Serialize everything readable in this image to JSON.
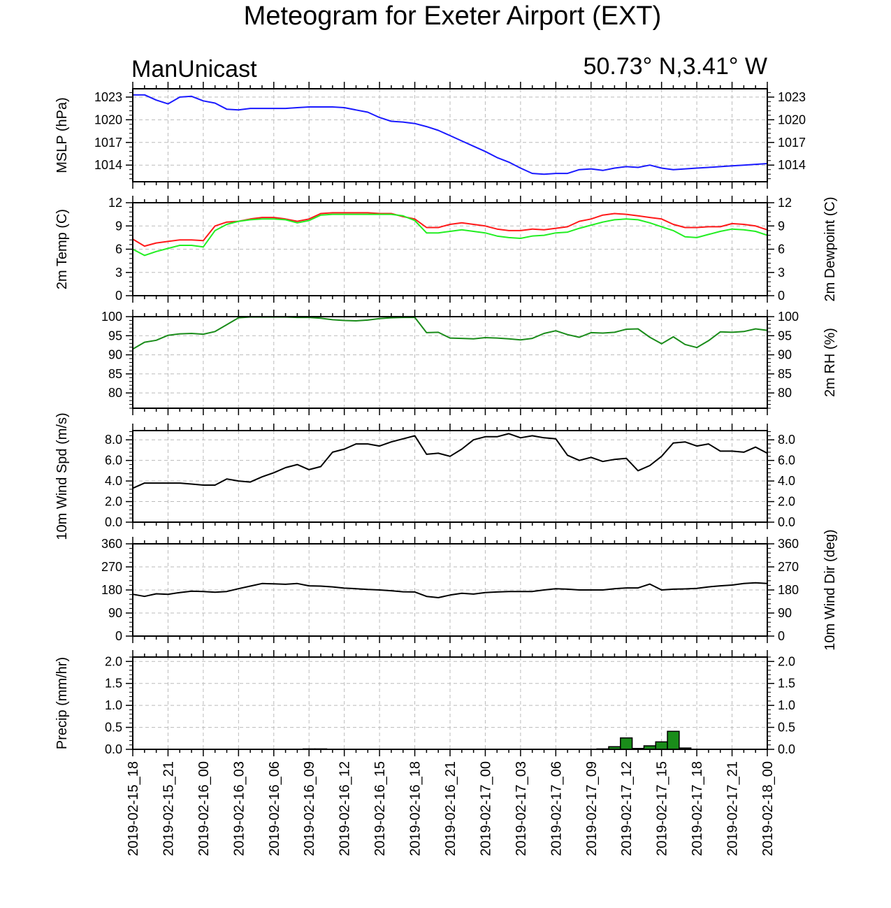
{
  "title": "Meteogram for Exeter Airport (EXT)",
  "left_label": "ManUnicast",
  "right_label": "50.73° N,3.41° W",
  "colors": {
    "mslp": "#1a1aff",
    "temp": "#ff1a1a",
    "dewpoint": "#22ee22",
    "rh": "#1a8c1a",
    "wind": "#000000",
    "precip_fill": "#1a8c1a",
    "grid": "#bbbbbb"
  },
  "chart_data": {
    "type": "line",
    "x_tick_labels": [
      "2019-02-15_18",
      "2019-02-15_21",
      "2019-02-16_00",
      "2019-02-16_03",
      "2019-02-16_06",
      "2019-02-16_09",
      "2019-02-16_12",
      "2019-02-16_15",
      "2019-02-16_18",
      "2019-02-16_21",
      "2019-02-17_00",
      "2019-02-17_03",
      "2019-02-17_06",
      "2019-02-17_09",
      "2019-02-17_12",
      "2019-02-17_15",
      "2019-02-17_18",
      "2019-02-17_21",
      "2019-02-18_00"
    ],
    "x_hours": [
      0,
      1,
      2,
      3,
      4,
      5,
      6,
      7,
      8,
      9,
      10,
      11,
      12,
      13,
      14,
      15,
      16,
      17,
      18,
      19,
      20,
      21,
      22,
      23,
      24,
      25,
      26,
      27,
      28,
      29,
      30,
      31,
      32,
      33,
      34,
      35,
      36,
      37,
      38,
      39,
      40,
      41,
      42,
      43,
      44,
      45,
      46,
      47,
      48,
      49,
      50,
      51,
      52,
      53,
      54
    ],
    "panels": [
      {
        "ylabel_left": "MSLP (hPa)",
        "ylabel_right": "",
        "ylim": [
          1011.8,
          1024.1
        ],
        "yticks": [
          1014,
          1017,
          1020,
          1023
        ],
        "ytick_labels": [
          "1014",
          "1017",
          "1020",
          "1023"
        ],
        "series": [
          {
            "color_key": "mslp",
            "values": [
              1023.3,
              1023.3,
              1022.6,
              1022.1,
              1023.0,
              1023.1,
              1022.5,
              1022.2,
              1021.4,
              1021.3,
              1021.5,
              1021.5,
              1021.5,
              1021.5,
              1021.6,
              1021.7,
              1021.7,
              1021.7,
              1021.6,
              1021.3,
              1021.0,
              1020.3,
              1019.8,
              1019.7,
              1019.5,
              1019.1,
              1018.6,
              1017.9,
              1017.2,
              1016.5,
              1015.8,
              1015.0,
              1014.4,
              1013.6,
              1012.9,
              1012.8,
              1012.9,
              1012.9,
              1013.4,
              1013.5,
              1013.3,
              1013.6,
              1013.8,
              1013.7,
              1014.0,
              1013.6,
              1013.4,
              1013.5,
              1013.6,
              1013.7,
              1013.8,
              1013.9,
              1014.0,
              1014.1,
              1014.2
            ]
          }
        ]
      },
      {
        "ylabel_left": "2m Temp (C)",
        "ylabel_right": "2m Dewpoint (C)",
        "ylim": [
          0,
          12
        ],
        "yticks": [
          0,
          3,
          6,
          9,
          12
        ],
        "ytick_labels": [
          "0",
          "3",
          "6",
          "9",
          "12"
        ],
        "series": [
          {
            "color_key": "temp",
            "values": [
              7.3,
              6.4,
              6.8,
              7.0,
              7.2,
              7.2,
              7.1,
              9.0,
              9.5,
              9.6,
              9.9,
              10.1,
              10.1,
              9.9,
              9.6,
              9.9,
              10.6,
              10.7,
              10.7,
              10.7,
              10.7,
              10.6,
              10.6,
              10.2,
              9.9,
              8.8,
              8.8,
              9.2,
              9.4,
              9.2,
              9.0,
              8.6,
              8.4,
              8.4,
              8.6,
              8.5,
              8.7,
              8.9,
              9.6,
              9.9,
              10.4,
              10.6,
              10.5,
              10.3,
              10.1,
              9.9,
              9.2,
              8.8,
              8.8,
              8.9,
              8.9,
              9.3,
              9.2,
              9.0,
              8.5
            ]
          },
          {
            "color_key": "dewpoint",
            "values": [
              6.0,
              5.2,
              5.7,
              6.1,
              6.5,
              6.5,
              6.3,
              8.4,
              9.2,
              9.6,
              9.8,
              9.9,
              9.9,
              9.8,
              9.4,
              9.7,
              10.4,
              10.5,
              10.5,
              10.5,
              10.5,
              10.5,
              10.5,
              10.3,
              9.7,
              8.1,
              8.1,
              8.3,
              8.5,
              8.3,
              8.1,
              7.7,
              7.5,
              7.4,
              7.7,
              7.8,
              8.1,
              8.2,
              8.7,
              9.1,
              9.5,
              9.8,
              9.9,
              9.8,
              9.4,
              8.9,
              8.4,
              7.6,
              7.5,
              7.9,
              8.3,
              8.6,
              8.5,
              8.3,
              7.8
            ]
          }
        ]
      },
      {
        "ylabel_left": "",
        "ylabel_right": "2m RH (%)",
        "ylim": [
          76,
          100
        ],
        "yticks": [
          80,
          85,
          90,
          95,
          100
        ],
        "ytick_labels": [
          "80",
          "85",
          "90",
          "95",
          "100"
        ],
        "series": [
          {
            "color_key": "rh",
            "values": [
              91.5,
              93.3,
              93.8,
              95.1,
              95.5,
              95.6,
              95.4,
              96.1,
              97.9,
              99.7,
              99.9,
              99.9,
              99.9,
              99.9,
              99.8,
              99.8,
              99.6,
              99.2,
              99.0,
              98.9,
              99.1,
              99.5,
              99.7,
              99.8,
              99.8,
              95.8,
              95.9,
              94.4,
              94.3,
              94.2,
              94.5,
              94.4,
              94.2,
              93.9,
              94.3,
              95.6,
              96.3,
              95.3,
              94.6,
              95.8,
              95.7,
              95.9,
              96.7,
              96.8,
              94.6,
              92.9,
              94.7,
              92.7,
              91.9,
              93.7,
              96.0,
              95.9,
              96.1,
              96.8,
              96.4
            ]
          }
        ]
      },
      {
        "ylabel_left": "10m Wind Spd (m/s)",
        "ylabel_right": "",
        "ylim": [
          0,
          8.9
        ],
        "yticks": [
          0,
          2,
          4,
          6,
          8
        ],
        "ytick_labels": [
          "0.0",
          "2.0",
          "4.0",
          "6.0",
          "8.0"
        ],
        "series": [
          {
            "color_key": "wind",
            "values": [
              3.3,
              3.8,
              3.8,
              3.8,
              3.8,
              3.7,
              3.6,
              3.6,
              4.2,
              4.0,
              3.9,
              4.4,
              4.8,
              5.3,
              5.6,
              5.1,
              5.4,
              6.8,
              7.1,
              7.6,
              7.6,
              7.4,
              7.8,
              8.1,
              8.4,
              6.6,
              6.7,
              6.4,
              7.1,
              8.0,
              8.3,
              8.3,
              8.6,
              8.2,
              8.4,
              8.2,
              8.1,
              6.5,
              6.0,
              6.3,
              5.9,
              6.1,
              6.2,
              5.0,
              5.5,
              6.4,
              7.7,
              7.8,
              7.4,
              7.6,
              6.9,
              6.9,
              6.8,
              7.3,
              6.7
            ]
          }
        ]
      },
      {
        "ylabel_left": "",
        "ylabel_right": "10m Wind Dir (deg)",
        "ylim": [
          0,
          360
        ],
        "yticks": [
          0,
          90,
          180,
          270,
          360
        ],
        "ytick_labels": [
          "0",
          "90",
          "180",
          "270",
          "360"
        ],
        "series": [
          {
            "color_key": "wind",
            "values": [
              163,
              155,
              165,
              163,
              170,
              175,
              174,
              171,
              174,
              185,
              195,
              205,
              204,
              202,
              205,
              196,
              195,
              192,
              187,
              185,
              182,
              180,
              177,
              173,
              172,
              155,
              150,
              160,
              167,
              164,
              170,
              172,
              174,
              174,
              174,
              180,
              185,
              183,
              180,
              180,
              180,
              185,
              188,
              188,
              203,
              180,
              183,
              184,
              186,
              192,
              196,
              199,
              205,
              208,
              205
            ]
          }
        ]
      },
      {
        "ylabel_left": "Precip (mm/hr)",
        "ylabel_right": "",
        "ylim": [
          0,
          2.1
        ],
        "yticks": [
          0,
          0.5,
          1,
          1.5,
          2
        ],
        "ytick_labels": [
          "0.0",
          "0.5",
          "1.0",
          "1.5",
          "2.0"
        ],
        "bars": {
          "color_key": "precip_fill",
          "values": [
            0,
            0,
            0,
            0,
            0,
            0,
            0,
            0,
            0,
            0,
            0,
            0,
            0,
            0,
            0,
            0.01,
            0.01,
            0,
            0,
            0,
            0,
            0,
            0,
            0,
            0,
            0,
            0,
            0,
            0,
            0,
            0,
            0,
            0,
            0,
            0,
            0,
            0,
            0,
            0,
            0,
            0.01,
            0.06,
            0.26,
            0.02,
            0.08,
            0.17,
            0.41,
            0.03,
            0,
            0,
            0,
            0,
            0,
            0,
            0
          ]
        }
      }
    ]
  }
}
